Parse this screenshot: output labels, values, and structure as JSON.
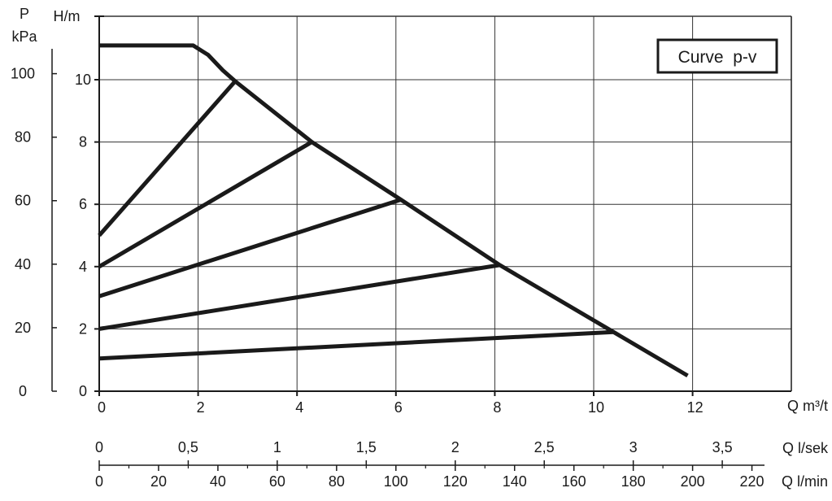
{
  "chart_data": {
    "type": "line",
    "legend_text": "Curve  p-v",
    "legend_position": "top-right",
    "grid": true,
    "left_axis_p": {
      "label_line1": "P",
      "label_line2": "kPa",
      "ticks": [
        0,
        20,
        40,
        60,
        80,
        100
      ]
    },
    "left_axis_h": {
      "label": "H/m",
      "ticks": [
        0,
        2,
        4,
        6,
        8,
        10
      ],
      "ylim": [
        0,
        11.5
      ]
    },
    "x_axis_q_m3h": {
      "label": "Q m³/t",
      "ticks": [
        0,
        2,
        4,
        6,
        8,
        10,
        12
      ],
      "xlim": [
        0,
        14
      ]
    },
    "x_axis_q_ls": {
      "label": "Q l/sek",
      "ticks": [
        "0",
        "0,5",
        "1",
        "1,5",
        "2",
        "2,5",
        "3",
        "3,5"
      ],
      "tick_values": [
        0,
        0.5,
        1,
        1.5,
        2,
        2.5,
        3,
        3.5
      ]
    },
    "x_axis_q_lmin": {
      "label": "Q l/min",
      "ticks": [
        0,
        20,
        40,
        60,
        80,
        100,
        120,
        140,
        160,
        180,
        200,
        220
      ],
      "minor_step": 10
    },
    "series": [
      {
        "role": "max-curve",
        "points": [
          [
            0,
            11.1
          ],
          [
            1.9,
            11.1
          ],
          [
            2.2,
            10.8
          ],
          [
            2.5,
            10.3
          ],
          [
            2.75,
            9.95
          ],
          [
            4.3,
            8.0
          ],
          [
            6.1,
            6.15
          ],
          [
            8.1,
            4.05
          ],
          [
            10.4,
            1.9
          ],
          [
            11.9,
            0.5
          ]
        ]
      },
      {
        "role": "p-v",
        "points": [
          [
            0,
            5.0
          ],
          [
            2.75,
            9.95
          ]
        ]
      },
      {
        "role": "p-v",
        "points": [
          [
            0,
            4.0
          ],
          [
            4.3,
            8.0
          ]
        ]
      },
      {
        "role": "p-v",
        "points": [
          [
            0,
            3.05
          ],
          [
            6.1,
            6.15
          ]
        ]
      },
      {
        "role": "p-v",
        "points": [
          [
            0,
            2.0
          ],
          [
            8.1,
            4.05
          ]
        ]
      },
      {
        "role": "p-v",
        "points": [
          [
            0,
            1.05
          ],
          [
            10.4,
            1.9
          ]
        ]
      }
    ]
  }
}
